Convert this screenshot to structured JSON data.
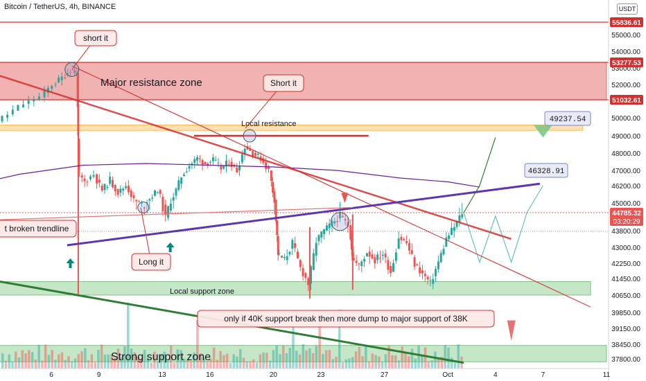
{
  "header": {
    "title": "Bitcoin / TetherUS, 4h, BINANCE"
  },
  "currency": "USDT",
  "colors": {
    "up": "#26a69a",
    "down": "#ef5350",
    "resistance": "#e57373",
    "support": "#81c784",
    "orange": "#ffcc80",
    "purple": "#5e35b1",
    "trend_red": "#d32f2f",
    "trend_green": "#2e7d32",
    "ma": "#6a1b9a"
  },
  "chart_data": {
    "type": "candlestick",
    "title": "Bitcoin / TetherUS, 4h, BINANCE",
    "x_ticks": [
      "6",
      "9",
      "13",
      "16",
      "20",
      "23",
      "27",
      "Oct",
      "4",
      "7",
      "11"
    ],
    "x_tick_days": [
      6,
      9,
      13,
      16,
      20,
      23,
      27,
      31,
      34,
      37,
      41
    ],
    "y_ticks": [
      55000,
      54000,
      53000,
      52000,
      50000,
      49000,
      48000,
      47000,
      46200,
      45000,
      43800,
      43000,
      42250,
      41450,
      40650,
      39850,
      39150,
      38450,
      37800
    ],
    "y_tick_labels": [
      "55000.00",
      "54000.00",
      "53000.00",
      "52000.00",
      "50000.00",
      "49000.00",
      "48000.00",
      "47000.00",
      "46200.00",
      "45000.00",
      "43800.00",
      "43000.00",
      "42250.00",
      "41450.00",
      "40650.00",
      "39850.00",
      "39150.00",
      "38450.00",
      "37800.00"
    ],
    "price_tags": [
      {
        "price": 55836.61,
        "label": "55836.61",
        "color": "#d32f2f"
      },
      {
        "price": 53277.53,
        "label": "53277.53",
        "color": "#d32f2f"
      },
      {
        "price": 51032.61,
        "label": "51032.61",
        "color": "#d32f2f"
      },
      {
        "price": 44785.32,
        "label": "44785.32",
        "sub": "03:20:29",
        "color": "#ef5350"
      }
    ],
    "close_path": [
      [
        0.5,
        49300
      ],
      [
        1.5,
        49900
      ],
      [
        2.5,
        49600
      ],
      [
        3.5,
        50200
      ],
      [
        4.5,
        50800
      ],
      [
        5.5,
        51200
      ],
      [
        6.2,
        52000
      ],
      [
        6.8,
        52400
      ],
      [
        7.3,
        52900
      ],
      [
        7.6,
        52700
      ],
      [
        7.7,
        46900
      ],
      [
        8.2,
        46400
      ],
      [
        8.8,
        46800
      ],
      [
        9.3,
        45900
      ],
      [
        9.8,
        46500
      ],
      [
        10.3,
        45700
      ],
      [
        10.8,
        46200
      ],
      [
        11.3,
        45200
      ],
      [
        11.8,
        44900
      ],
      [
        12.3,
        45300
      ],
      [
        12.8,
        45900
      ],
      [
        13.3,
        44500
      ],
      [
        13.8,
        45500
      ],
      [
        14.3,
        46700
      ],
      [
        14.8,
        47300
      ],
      [
        15.3,
        47700
      ],
      [
        15.8,
        47400
      ],
      [
        16.3,
        47600
      ],
      [
        16.8,
        47100
      ],
      [
        17.3,
        47500
      ],
      [
        17.8,
        47000
      ],
      [
        18.3,
        48400
      ],
      [
        18.8,
        48000
      ],
      [
        19.3,
        47700
      ],
      [
        19.8,
        47000
      ],
      [
        20.1,
        45200
      ],
      [
        20.3,
        42700
      ],
      [
        20.8,
        42400
      ],
      [
        21.3,
        43200
      ],
      [
        21.8,
        42000
      ],
      [
        22.3,
        41200
      ],
      [
        22.8,
        43300
      ],
      [
        23.3,
        43800
      ],
      [
        23.8,
        44200
      ],
      [
        24.3,
        44600
      ],
      [
        24.8,
        44100
      ],
      [
        25.0,
        42500
      ],
      [
        25.5,
        42100
      ],
      [
        26.0,
        42800
      ],
      [
        26.5,
        42400
      ],
      [
        27.0,
        42700
      ],
      [
        27.5,
        41800
      ],
      [
        28.0,
        43500
      ],
      [
        28.5,
        43200
      ],
      [
        29.0,
        42200
      ],
      [
        29.5,
        41700
      ],
      [
        30.0,
        41200
      ],
      [
        30.5,
        42300
      ],
      [
        31.0,
        43400
      ],
      [
        31.5,
        44000
      ],
      [
        32.0,
        44785
      ]
    ],
    "volume_bars": 140,
    "moving_average": [
      [
        0,
        46000
      ],
      [
        4,
        46800
      ],
      [
        8,
        47300
      ],
      [
        12,
        47400
      ],
      [
        16,
        47300
      ],
      [
        20,
        47200
      ],
      [
        24,
        47000
      ],
      [
        28,
        46600
      ],
      [
        31,
        46400
      ],
      [
        33,
        46100
      ]
    ],
    "zones": [
      {
        "label": "Major resistance zone",
        "from": 51032.61,
        "to": 53277.53,
        "x_from": 0,
        "x_to": 41
      },
      {
        "label": "Local resistance",
        "from": 49300,
        "to": 49600,
        "x_from": 0,
        "x_to": 39.5
      },
      {
        "label": "Local support zone",
        "from": 40650,
        "to": 41300,
        "x_from": 0,
        "x_to": 40
      },
      {
        "label": "Strong support zone",
        "from": 37650,
        "to": 38400,
        "x_from": 0,
        "x_to": 41
      }
    ],
    "annotations": [
      {
        "text": "short it"
      },
      {
        "text": "Short it"
      },
      {
        "text": "Long it"
      },
      {
        "text": "t broken trendline"
      },
      {
        "text": "only if 40K support break then more dump to major support of 38K"
      },
      {
        "text": "49237.54"
      },
      {
        "text": "46328.91"
      }
    ]
  }
}
